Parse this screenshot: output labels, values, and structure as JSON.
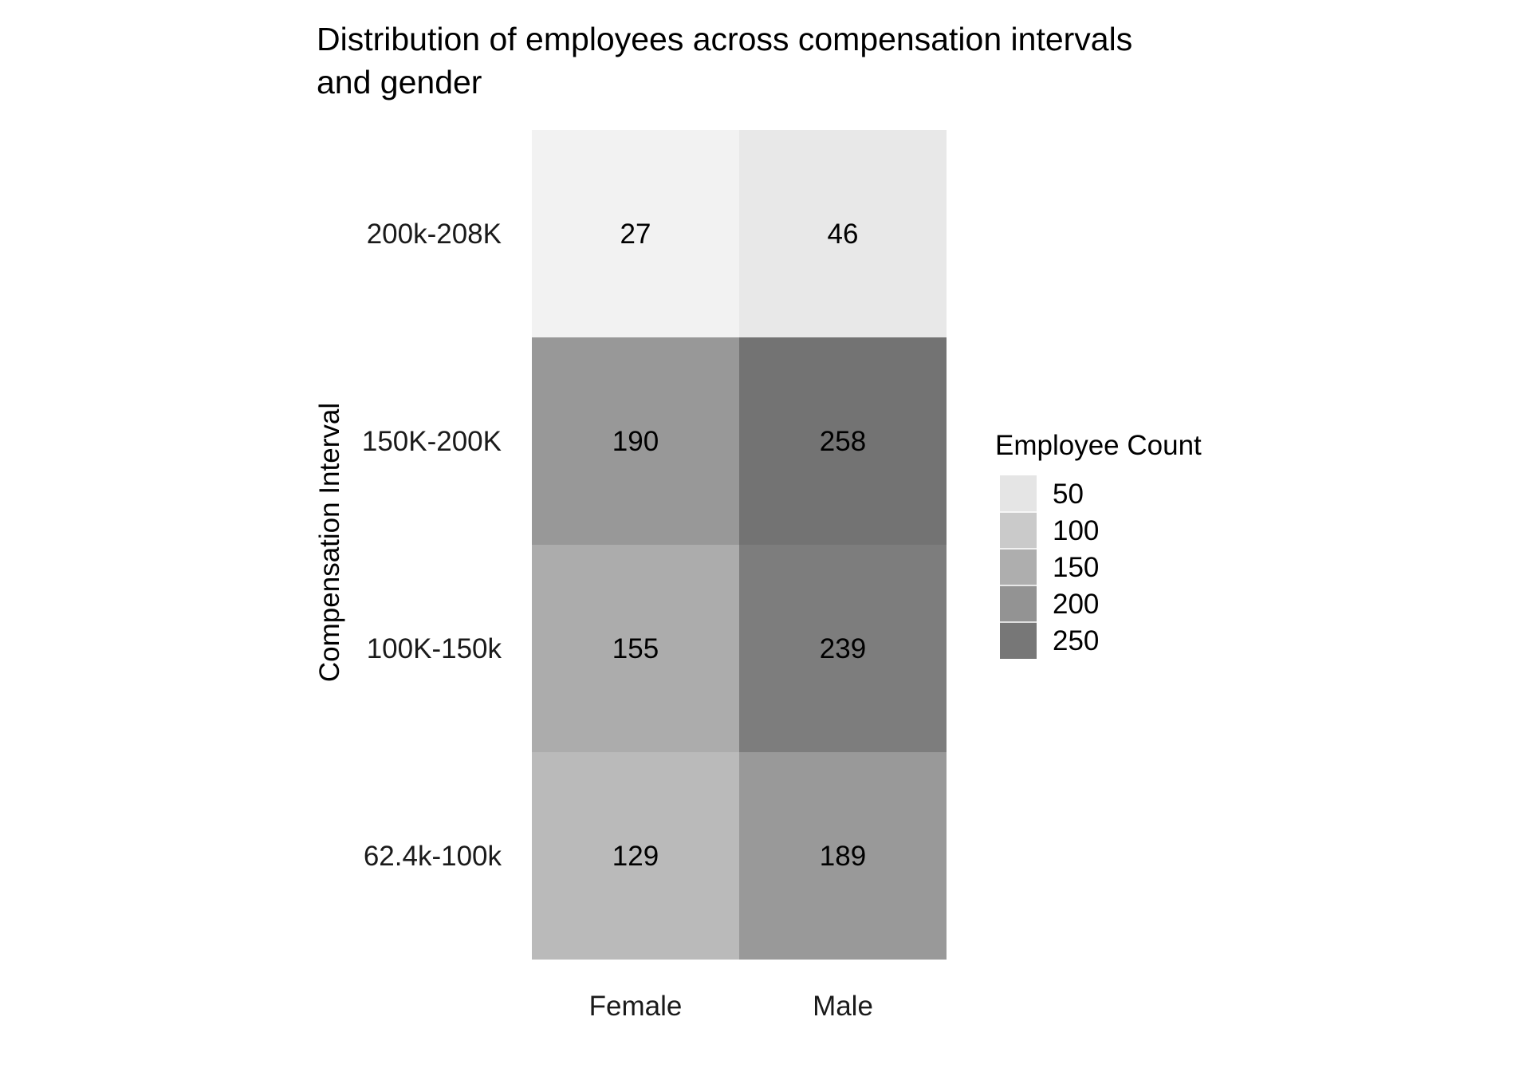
{
  "chart_data": {
    "type": "heatmap",
    "title": [
      "Distribution of employees across compensation intervals",
      "and gender"
    ],
    "xlabel": "",
    "ylabel": "Compensation Interval",
    "x_categories": [
      "Female",
      "Male"
    ],
    "y_categories": [
      "200k-208K",
      "150K-200K",
      "100K-150k",
      "62.4k-100k"
    ],
    "values": [
      [
        27,
        46
      ],
      [
        190,
        258
      ],
      [
        155,
        239
      ],
      [
        129,
        189
      ]
    ],
    "color_scale": {
      "low_value": 27,
      "high_value": 258,
      "low_color": "#f2f2f2",
      "high_color": "#737373"
    },
    "legend": {
      "title": "Employee Count",
      "breaks": [
        50,
        100,
        150,
        200,
        250
      ],
      "position": "right"
    },
    "grid": false
  }
}
